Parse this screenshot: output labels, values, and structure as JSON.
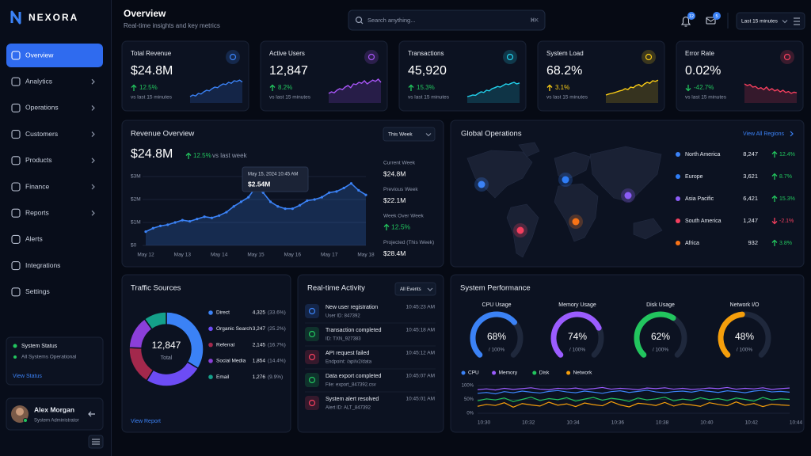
{
  "brand": "NEXORA",
  "nav": [
    {
      "label": "Overview",
      "active": true
    },
    {
      "label": "Analytics",
      "expandable": true
    },
    {
      "label": "Operations",
      "expandable": true
    },
    {
      "label": "Customers",
      "expandable": true
    },
    {
      "label": "Products",
      "expandable": true
    },
    {
      "label": "Finance",
      "expandable": true
    },
    {
      "label": "Reports",
      "expandable": true
    },
    {
      "label": "Alerts"
    },
    {
      "label": "Integrations"
    },
    {
      "label": "Settings"
    }
  ],
  "system_status": {
    "title": "System Status",
    "status": "All Systems Operational",
    "link": "View Status"
  },
  "user": {
    "name": "Alex Morgan",
    "role": "System Administrator"
  },
  "header": {
    "title": "Overview",
    "subtitle": "Real-time insights and key metrics",
    "search_placeholder": "Search anything...",
    "shortcut": "⌘K",
    "notifications": 12,
    "messages": 5,
    "time_range": "Last 15 minutes"
  },
  "kpis": [
    {
      "label": "Total Revenue",
      "value": "$24.8M",
      "change": "12.5%",
      "direction": "up",
      "change_color": "#22c55e",
      "note": "vs last 15 minutes",
      "color": "#3b82f6",
      "sparkline": {
        "type": "line",
        "values": [
          20,
          25,
          22,
          30,
          28,
          35,
          40,
          38,
          45,
          50,
          48,
          55,
          60,
          58,
          65,
          62,
          70,
          68,
          72,
          66
        ]
      }
    },
    {
      "label": "Active Users",
      "value": "12,847",
      "change": "8.2%",
      "direction": "up",
      "change_color": "#22c55e",
      "note": "vs last 15 minutes",
      "color": "#a855f7",
      "sparkline": {
        "type": "line",
        "values": [
          30,
          35,
          32,
          40,
          45,
          42,
          50,
          55,
          48,
          60,
          58,
          65,
          62,
          70,
          60,
          66,
          72,
          68,
          75,
          65
        ]
      }
    },
    {
      "label": "Transactions",
      "value": "45,920",
      "change": "15.3%",
      "direction": "up",
      "change_color": "#22c55e",
      "note": "vs last 15 minutes",
      "color": "#22d3ee",
      "sparkline": {
        "type": "line",
        "values": [
          20,
          22,
          25,
          24,
          30,
          35,
          33,
          40,
          38,
          45,
          48,
          52,
          50,
          55,
          60,
          58,
          62,
          65,
          60,
          63
        ]
      }
    },
    {
      "label": "System Load",
      "value": "68.2%",
      "change": "3.1%",
      "direction": "up",
      "change_color": "#facc15",
      "note": "vs last 15 minutes",
      "color": "#facc15",
      "sparkline": {
        "type": "line",
        "values": [
          25,
          28,
          30,
          32,
          35,
          38,
          40,
          45,
          42,
          50,
          48,
          55,
          58,
          52,
          60,
          65,
          62,
          70,
          68,
          72
        ]
      }
    },
    {
      "label": "Error Rate",
      "value": "0.02%",
      "change": "-42.7%",
      "direction": "down",
      "change_color": "#22c55e",
      "note": "vs last 15 minutes",
      "color": "#f43f5e",
      "sparkline": {
        "type": "line",
        "values": [
          60,
          55,
          58,
          50,
          52,
          45,
          48,
          42,
          50,
          40,
          45,
          38,
          42,
          35,
          40,
          33,
          36,
          30,
          34,
          32
        ]
      }
    }
  ],
  "revenue": {
    "title": "Revenue Overview",
    "period": "This Week",
    "total": "$24.8M",
    "change": "12.5%",
    "change_note": "vs last week",
    "chart": {
      "type": "line",
      "color": "#3b82f6",
      "grid": true,
      "categories": [
        "May 12",
        null,
        null,
        null,
        null,
        "May 13",
        null,
        null,
        null,
        null,
        "May 14",
        null,
        null,
        null,
        null,
        "May 15",
        null,
        null,
        null,
        null,
        "May 16",
        null,
        null,
        null,
        null,
        "May 17",
        null,
        null,
        null,
        null,
        "May 18"
      ],
      "values": [
        600000,
        750000,
        850000,
        900000,
        1000000,
        1100000,
        1050000,
        1150000,
        1250000,
        1200000,
        1300000,
        1450000,
        1700000,
        1900000,
        2100000,
        2540000,
        2300000,
        1900000,
        1700000,
        1600000,
        1600000,
        1750000,
        1950000,
        2000000,
        2100000,
        2300000,
        2350000,
        2500000,
        2700000,
        2400000,
        2200000
      ],
      "ylim": [
        0,
        3000000
      ],
      "yticks": [
        {
          "value": 0,
          "label": "$0"
        },
        {
          "value": 1000000,
          "label": "$1M"
        },
        {
          "value": 2000000,
          "label": "$2M"
        },
        {
          "value": 3000000,
          "label": "$3M"
        }
      ],
      "tooltip": {
        "title": "May 15, 2024 10:45 AM",
        "text": "$2.54M"
      }
    },
    "stats": [
      {
        "label": "Current Week",
        "value": "$24.8M"
      },
      {
        "label": "Previous Week",
        "value": "$22.1M"
      },
      {
        "label": "Week Over Week",
        "value": "12.5%",
        "trend": "up"
      },
      {
        "label": "Projected (This Week)",
        "value": "$28.4M"
      }
    ]
  },
  "global": {
    "title": "Global Operations",
    "link": "View All Regions",
    "regions": [
      {
        "name": "North America",
        "value": "8,247",
        "change": "12.4%",
        "direction": "up",
        "color": "#3b82f6"
      },
      {
        "name": "Europe",
        "value": "3,621",
        "change": "8.7%",
        "direction": "up",
        "color": "#2f7df6"
      },
      {
        "name": "Asia Pacific",
        "value": "6,421",
        "change": "15.3%",
        "direction": "up",
        "color": "#8b5cf6"
      },
      {
        "name": "South America",
        "value": "1,247",
        "change": "-2.1%",
        "direction": "down",
        "color": "#f43f5e"
      },
      {
        "name": "Africa",
        "value": "932",
        "change": "3.8%",
        "direction": "up",
        "color": "#f97316"
      }
    ]
  },
  "traffic": {
    "title": "Traffic Sources",
    "link": "View Report",
    "total": "12,847",
    "total_label": "Total",
    "chart": {
      "type": "pie",
      "categories": [
        "Direct",
        "Organic Search",
        "Referral",
        "Social Media",
        "Email"
      ],
      "values": [
        4325,
        3247,
        2145,
        1854,
        1276
      ],
      "value_labels": [
        "4,325",
        "3,247",
        "2,145",
        "1,854",
        "1,276"
      ],
      "percent_labels": [
        "(33.6%)",
        "(25.2%)",
        "(16.7%)",
        "(14.4%)",
        "(9.9%)"
      ],
      "colors": [
        "#3b82f6",
        "#6d4cf5",
        "#a3284c",
        "#8b3fd9",
        "#14a08a"
      ]
    }
  },
  "activity": {
    "title": "Real-time Activity",
    "filter": "All Events",
    "items": [
      {
        "title": "New user registration",
        "detail": "User ID: 847392",
        "time": "10:45:23 AM",
        "color": "#3b82f6"
      },
      {
        "title": "Transaction completed",
        "detail": "ID: TXN_927383",
        "time": "10:45:18 AM",
        "color": "#22c55e"
      },
      {
        "title": "API request failed",
        "detail": "Endpoint: /api/v2/data",
        "time": "10:45:12 AM",
        "color": "#f43f5e"
      },
      {
        "title": "Data export completed",
        "detail": "File: export_847392.csv",
        "time": "10:45:07 AM",
        "color": "#22c55e"
      },
      {
        "title": "System alert resolved",
        "detail": "Alert ID: ALT_847392",
        "time": "10:45:01 AM",
        "color": "#f43f5e"
      }
    ]
  },
  "performance": {
    "title": "System Performance",
    "gauges": [
      {
        "label": "CPU Usage",
        "value": 68,
        "value_label": "68%",
        "max": 100,
        "max_label": "/ 100%",
        "color": "#3b82f6"
      },
      {
        "label": "Memory Usage",
        "value": 74,
        "value_label": "74%",
        "max": 100,
        "max_label": "/ 100%",
        "color": "#9b5cff"
      },
      {
        "label": "Disk Usage",
        "value": 62,
        "value_label": "62%",
        "max": 100,
        "max_label": "/ 100%",
        "color": "#22c55e"
      },
      {
        "label": "Network I/O",
        "value": 48,
        "value_label": "48%",
        "max": 100,
        "max_label": "/ 100%",
        "color": "#f59e0b"
      }
    ],
    "chart": {
      "type": "line",
      "grid": true,
      "categories": [
        "10:30",
        null,
        null,
        null,
        null,
        "10:32",
        null,
        null,
        null,
        null,
        "10:34",
        null,
        null,
        null,
        null,
        "10:36",
        null,
        null,
        null,
        null,
        "10:38",
        null,
        null,
        null,
        null,
        "10:40",
        null,
        null,
        null,
        null,
        "10:42",
        null,
        null,
        null,
        null,
        "10:44"
      ],
      "ylim": [
        0,
        100
      ],
      "yticks": [
        {
          "value": 0,
          "label": "0%"
        },
        {
          "value": 50,
          "label": "50%"
        },
        {
          "value": 100,
          "label": "100%"
        }
      ],
      "series": [
        {
          "name": "CPU",
          "color": "#3b82f6",
          "values": [
            72,
            75,
            70,
            78,
            74,
            80,
            76,
            73,
            79,
            82,
            77,
            74,
            80,
            76,
            72,
            78,
            81,
            75,
            79,
            83,
            77,
            74,
            78,
            80,
            76,
            82,
            79,
            75,
            81,
            78,
            74,
            80,
            83,
            77,
            79,
            76
          ]
        },
        {
          "name": "Memory",
          "color": "#9b5cff",
          "values": [
            85,
            88,
            84,
            90,
            86,
            89,
            92,
            87,
            85,
            90,
            88,
            91,
            86,
            89,
            93,
            87,
            90,
            88,
            85,
            91,
            89,
            92,
            87,
            90,
            86,
            88,
            91,
            89,
            93,
            87,
            90,
            88,
            92,
            86,
            89,
            91
          ]
        },
        {
          "name": "Disk",
          "color": "#22c55e",
          "values": [
            45,
            52,
            48,
            55,
            42,
            50,
            58,
            46,
            53,
            49,
            56,
            44,
            51,
            57,
            47,
            54,
            50,
            43,
            55,
            48,
            52,
            58,
            45,
            51,
            47,
            56,
            49,
            53,
            46,
            55,
            50,
            44,
            57,
            48,
            52,
            50
          ]
        },
        {
          "name": "Network",
          "color": "#f59e0b",
          "values": [
            25,
            32,
            28,
            38,
            22,
            35,
            30,
            26,
            40,
            29,
            34,
            24,
            37,
            31,
            27,
            42,
            30,
            23,
            36,
            33,
            28,
            39,
            26,
            34,
            30,
            25,
            38,
            32,
            27,
            41,
            29,
            35,
            24,
            33,
            30,
            28
          ]
        }
      ]
    }
  }
}
